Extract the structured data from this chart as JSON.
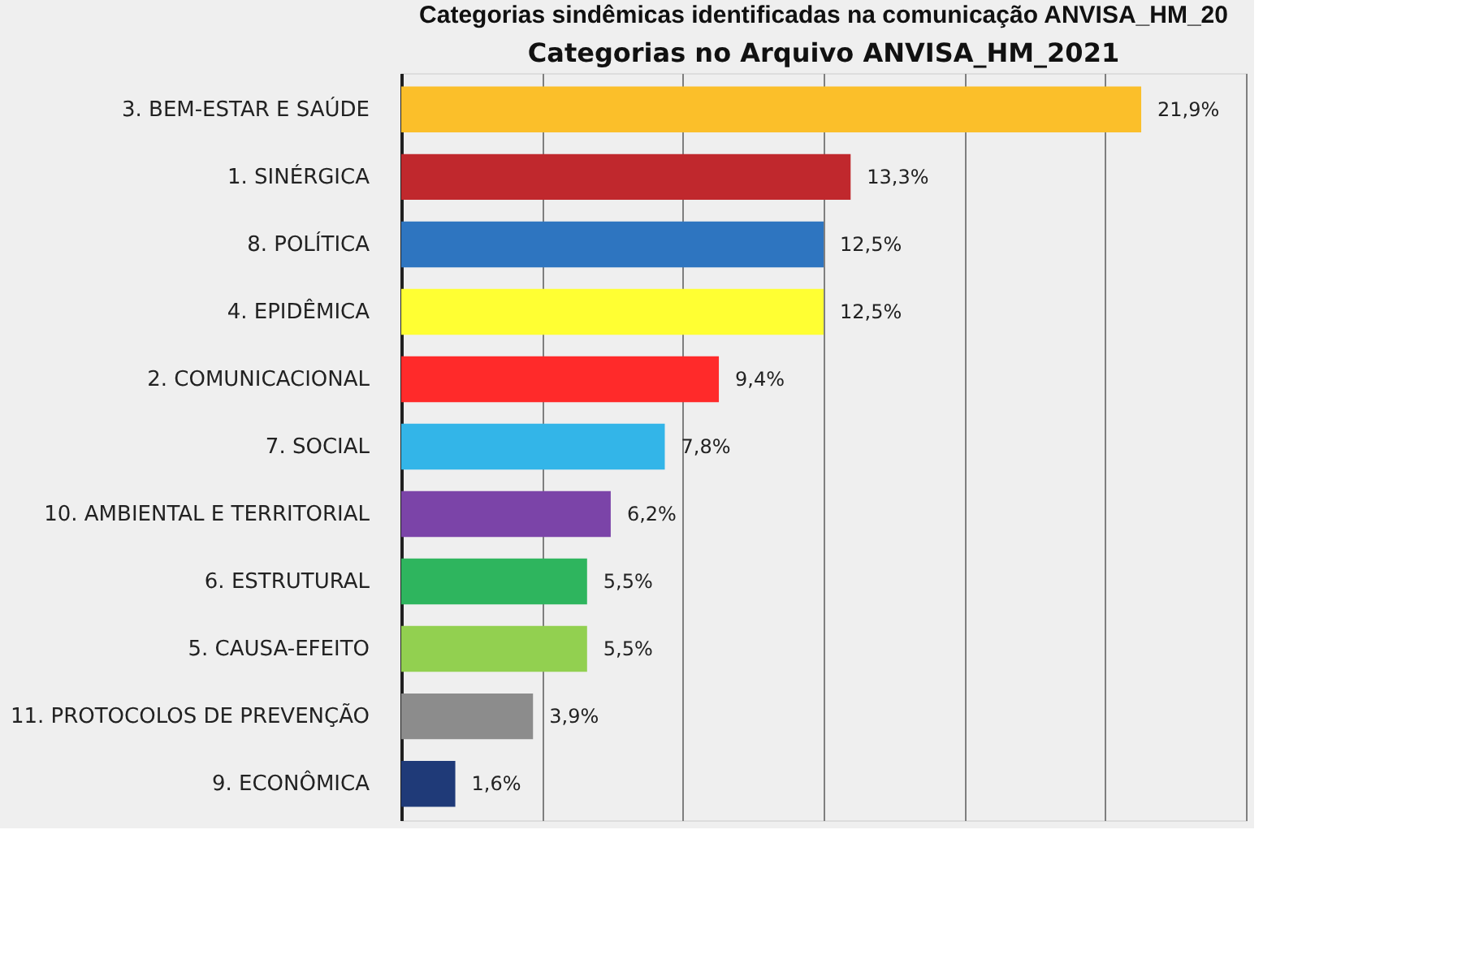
{
  "chart_data": {
    "type": "bar",
    "orientation": "horizontal",
    "title": "Categorias no Arquivo ANVISA_HM_2021",
    "annotations": [
      "Categorias sindêmicas identificadas na comunicação ANVISA_HM_20"
    ],
    "categories": [
      "3. BEM-ESTAR E SAÚDE",
      "1. SINÉRGICA",
      "8. POLÍTICA",
      "4. EPIDÊMICA",
      "2. COMUNICACIONAL",
      "7. SOCIAL",
      "10. AMBIENTAL E TERRITORIAL",
      "6. ESTRUTURAL",
      "5. CAUSA-EFEITO",
      "11. PROTOCOLOS DE PREVENÇÃO",
      "9. ECONÔMICA"
    ],
    "values": [
      21.9,
      13.3,
      12.5,
      12.5,
      9.4,
      7.8,
      6.2,
      5.5,
      5.5,
      3.9,
      1.6
    ],
    "value_labels": [
      "21,9%",
      "13,3%",
      "12,5%",
      "12,5%",
      "9,4%",
      "7,8%",
      "6,2%",
      "5,5%",
      "5,5%",
      "3,9%",
      "1,6%"
    ],
    "colors": [
      "#fbbf2a",
      "#c0282d",
      "#2e75c0",
      "#ffff33",
      "#ff2a2a",
      "#33b5e8",
      "#7b44a8",
      "#2eb55e",
      "#92d050",
      "#8c8c8c",
      "#1f3a78"
    ],
    "xlim": [
      0,
      25
    ],
    "xticks": [
      {
        "value": 0,
        "label": null
      },
      {
        "value": 4.1667,
        "label": null
      },
      {
        "value": 8.3333,
        "label": null
      },
      {
        "value": 12.5,
        "label": null
      },
      {
        "value": 16.6667,
        "label": null
      },
      {
        "value": 20.8333,
        "label": null
      },
      {
        "value": 25,
        "label": null
      }
    ],
    "grid": "x",
    "tick_labels": "y"
  }
}
